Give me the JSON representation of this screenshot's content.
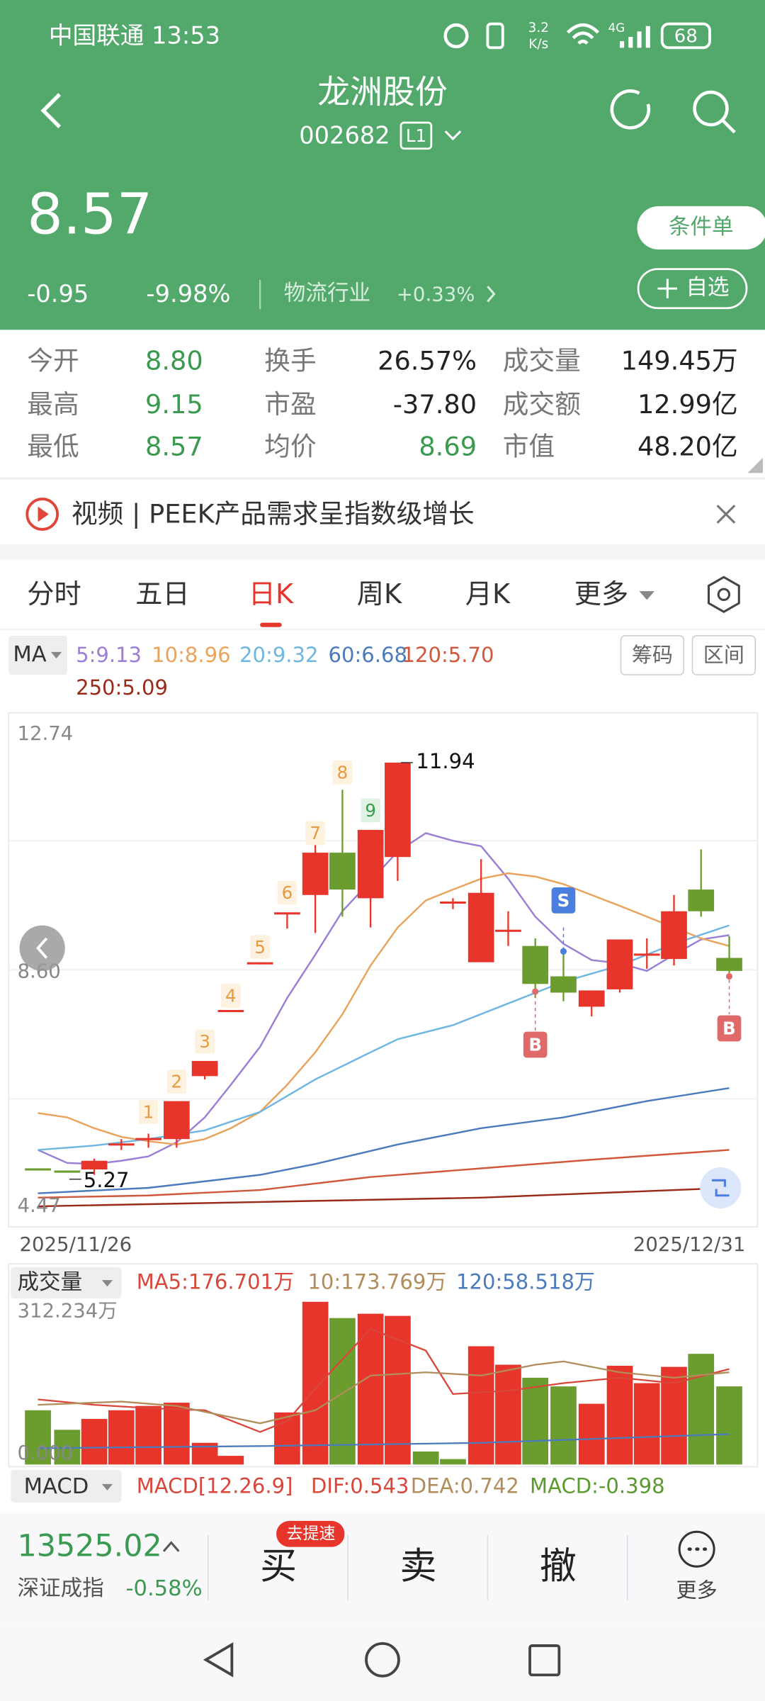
{
  "status": {
    "carrier_time": "中国联通 13:53",
    "speed_value": "3.2",
    "speed_unit": "K/s",
    "network": "4G",
    "battery": "68"
  },
  "header": {
    "name": "龙洲股份",
    "code": "002682",
    "level": "L1"
  },
  "quote": {
    "price": "8.57",
    "change": "-0.95",
    "change_pct": "-9.98%",
    "industry": "物流行业",
    "industry_change": "+0.33%",
    "btn_condition": "条件单",
    "btn_watch": "自选"
  },
  "stats": {
    "rows": [
      [
        "今开",
        "8.80",
        "换手",
        "26.57%",
        "成交量",
        "149.45万"
      ],
      [
        "最高",
        "9.15",
        "市盈",
        "-37.80",
        "成交额",
        "12.99亿"
      ],
      [
        "最低",
        "8.57",
        "均价",
        "8.69",
        "市值",
        "48.20亿"
      ]
    ]
  },
  "news": {
    "text": "视频 | PEEK产品需求呈指数级增长"
  },
  "tabs": [
    "分时",
    "五日",
    "日K",
    "周K",
    "月K",
    "更多"
  ],
  "ma": {
    "label": "MA",
    "items": [
      "5:9.13",
      "10:8.96",
      "20:9.32",
      "60:6.68",
      "120:5.70",
      "250:5.09"
    ],
    "buttons": [
      "筹码",
      "区间"
    ]
  },
  "kline": {
    "y_labels": [
      "12.74",
      "8.60",
      "4.47"
    ],
    "high": "11.94",
    "low": "5.27",
    "markers": [
      "1",
      "2",
      "3",
      "4",
      "5",
      "6",
      "7",
      "8",
      "9"
    ],
    "signals": [
      "S",
      "B",
      "B"
    ],
    "dates": [
      "2025/11/26",
      "2025/12/31"
    ]
  },
  "volume": {
    "label": "成交量",
    "items": [
      "MA5:176.701万",
      "10:173.769万",
      "120:58.518万"
    ],
    "max": "312.234万",
    "min": "0.000"
  },
  "macd": {
    "label": "MACD",
    "items": [
      "MACD[12.26.9]",
      "DIF:0.543",
      "DEA:0.742",
      "MACD:-0.398"
    ]
  },
  "bottom": {
    "index_value": "13525.02",
    "index_name": "深证成指",
    "index_change": "-0.58%",
    "badge": "去提速",
    "buy": "买",
    "sell": "卖",
    "cancel": "撤",
    "more": "更多"
  }
}
